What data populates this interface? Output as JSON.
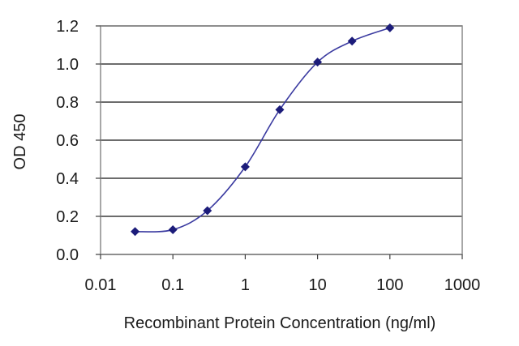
{
  "chart_data": {
    "type": "line",
    "x_scale": "log",
    "xlabel": "Recombinant Protein Concentration (ng/ml)",
    "ylabel": "OD 450",
    "xlim": [
      0.01,
      1000
    ],
    "ylim": [
      0.0,
      1.2
    ],
    "x_ticks": [
      "0.01",
      "0.1",
      "1",
      "10",
      "100",
      "1000"
    ],
    "y_ticks": [
      "0.0",
      "0.2",
      "0.4",
      "0.6",
      "0.8",
      "1.0",
      "1.2"
    ],
    "grid": "horizontal",
    "series": [
      {
        "color": "#3a3aa0",
        "marker_color": "#1c1c7a",
        "marker": "diamond",
        "points": [
          {
            "x": 0.03,
            "y": 0.12
          },
          {
            "x": 0.1,
            "y": 0.13
          },
          {
            "x": 0.3,
            "y": 0.23
          },
          {
            "x": 1,
            "y": 0.46
          },
          {
            "x": 3,
            "y": 0.76
          },
          {
            "x": 10,
            "y": 1.01
          },
          {
            "x": 30,
            "y": 1.12
          },
          {
            "x": 100,
            "y": 1.19
          }
        ]
      }
    ]
  }
}
